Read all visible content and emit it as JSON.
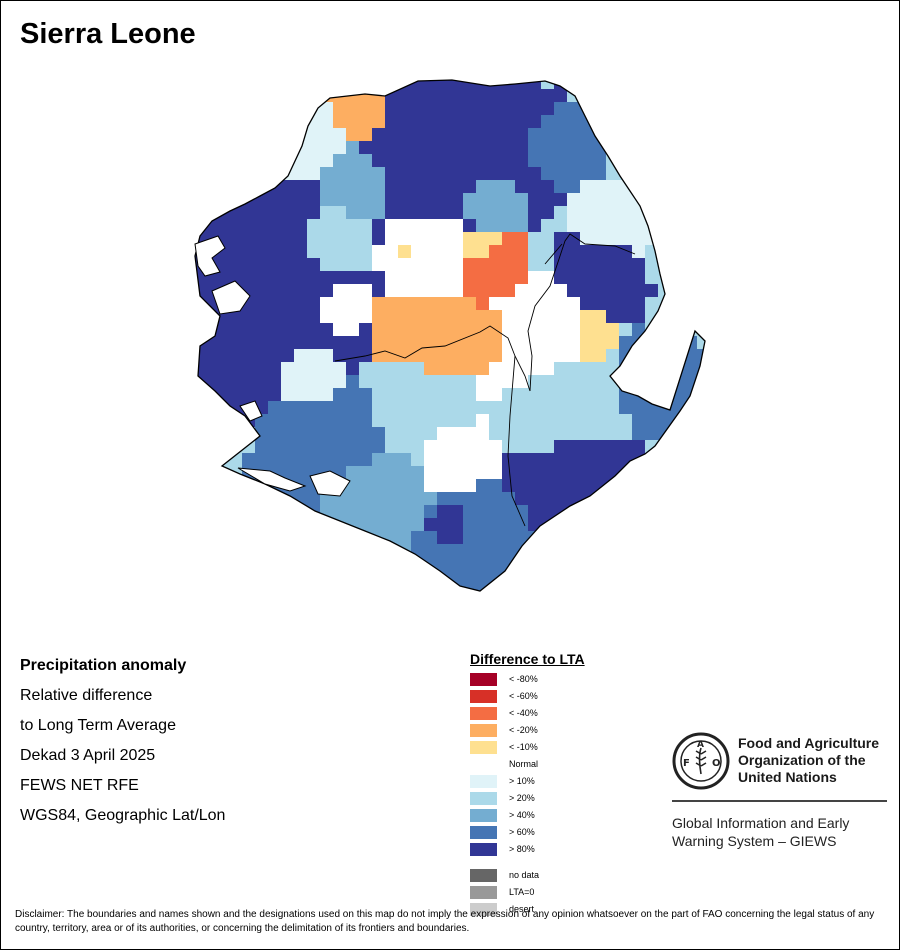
{
  "title": "Sierra Leone",
  "info": {
    "heading": "Precipitation anomaly",
    "line1": "Relative difference",
    "line2": "to Long Term Average",
    "period": "Dekad 3 April 2025",
    "source": "FEWS NET RFE",
    "projection": "WGS84, Geographic Lat/Lon"
  },
  "legend": {
    "title": "Difference to LTA",
    "items": [
      {
        "label": "< -80%",
        "color": "#a50026"
      },
      {
        "label": "< -60%",
        "color": "#d73027"
      },
      {
        "label": "< -40%",
        "color": "#f46d43"
      },
      {
        "label": "< -20%",
        "color": "#fdae61"
      },
      {
        "label": "< -10%",
        "color": "#fee090"
      },
      {
        "label": "Normal",
        "color": "#ffffff"
      },
      {
        "label": "> 10%",
        "color": "#e0f3f8"
      },
      {
        "label": "> 20%",
        "color": "#abd9e9"
      },
      {
        "label": "> 40%",
        "color": "#74add1"
      },
      {
        "label": "> 60%",
        "color": "#4575b4"
      },
      {
        "label": "> 80%",
        "color": "#313695"
      }
    ],
    "extra": [
      {
        "label": "no data",
        "color": "#666666"
      },
      {
        "label": "LTA=0",
        "color": "#999999"
      },
      {
        "label": "desert",
        "color": "#cccccc"
      }
    ]
  },
  "org": {
    "emblem_text": "FAO",
    "emblem_motto": "FIAT PANIS",
    "name_line1": "Food and Agriculture",
    "name_line2": "Organization of the",
    "name_line3": "United Nations",
    "system_line1": "Global Information and Early",
    "system_line2": "Warning System – GIEWS"
  },
  "disclaimer": "Disclaimer: The boundaries and names shown and the designations used on this map do not imply the expression of any opinion whatsoever on the part of FAO concerning the legal status of any country, territory, area or of its authorities, or concerning the delimitation of its frontiers and boundaries."
}
